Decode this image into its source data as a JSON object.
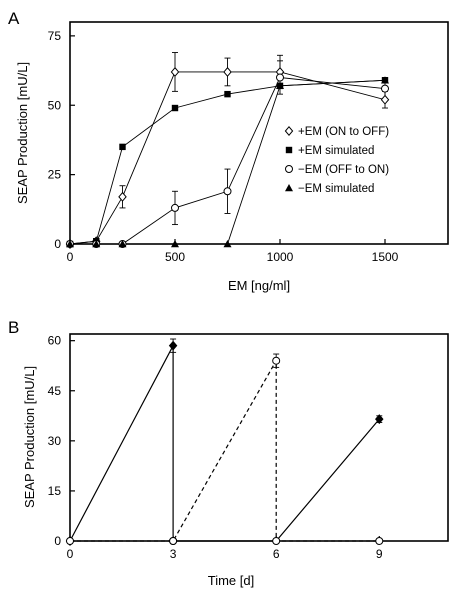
{
  "chart_data": [
    {
      "panel_label": "A",
      "type": "line",
      "xlabel": "EM [ng/ml]",
      "ylabel": "SEAP Production  [mU/L]",
      "xlim": [
        0,
        1800
      ],
      "ylim": [
        0,
        80
      ],
      "xticks": [
        0,
        500,
        1000,
        1500
      ],
      "yticks": [
        0,
        25,
        50,
        75
      ],
      "grid": false,
      "legend_position": "right",
      "series": [
        {
          "name": "+EM (ON to OFF)",
          "marker": "diamond-open",
          "line": "solid",
          "x": [
            0,
            125,
            250,
            500,
            750,
            1000,
            1500
          ],
          "y": [
            0,
            1,
            17,
            62,
            62,
            62,
            52
          ],
          "err": [
            0,
            1,
            4,
            7,
            5,
            6,
            3
          ]
        },
        {
          "name": "+EM simulated",
          "marker": "square-filled",
          "line": "solid",
          "x": [
            0,
            125,
            250,
            500,
            750,
            1000,
            1500
          ],
          "y": [
            0,
            1,
            35,
            49,
            54,
            57,
            59
          ],
          "err": [
            0,
            0,
            0,
            0,
            0,
            0,
            0
          ]
        },
        {
          "name": "−EM (OFF to ON)",
          "marker": "circle-open",
          "line": "solid",
          "x": [
            0,
            125,
            250,
            500,
            750,
            1000,
            1500
          ],
          "y": [
            0,
            0,
            0,
            13,
            19,
            60,
            56
          ],
          "err": [
            0,
            0,
            0,
            6,
            8,
            6,
            4
          ]
        },
        {
          "name": "−EM simulated",
          "marker": "triangle-filled",
          "line": "solid",
          "x": [
            0,
            125,
            250,
            500,
            750,
            1000,
            1500
          ],
          "y": [
            0,
            0,
            0,
            0,
            0,
            57,
            59
          ],
          "err": [
            0,
            0,
            0,
            0,
            0,
            0,
            0
          ]
        }
      ]
    },
    {
      "panel_label": "B",
      "type": "line",
      "xlabel": "Time [d]",
      "ylabel": "SEAP Production  [mU/L]",
      "xlim": [
        0,
        11
      ],
      "ylim": [
        0,
        62
      ],
      "xticks": [
        0,
        3,
        6,
        9
      ],
      "yticks": [
        0,
        15,
        30,
        45,
        60
      ],
      "grid": false,
      "series": [
        {
          "line": "solid",
          "marker": "diamond-filled",
          "x": [
            0,
            3,
            3,
            6,
            6,
            9
          ],
          "y": [
            0,
            58.5,
            0,
            0,
            0,
            36.5
          ],
          "err": [
            0,
            2,
            0,
            0,
            0,
            1
          ]
        },
        {
          "line": "dashed",
          "marker": "circle-open",
          "x": [
            0,
            3,
            3,
            6,
            6,
            9
          ],
          "y": [
            0,
            0,
            0,
            54,
            0,
            0
          ],
          "err": [
            0,
            0,
            0,
            2,
            0,
            0
          ]
        }
      ]
    }
  ]
}
